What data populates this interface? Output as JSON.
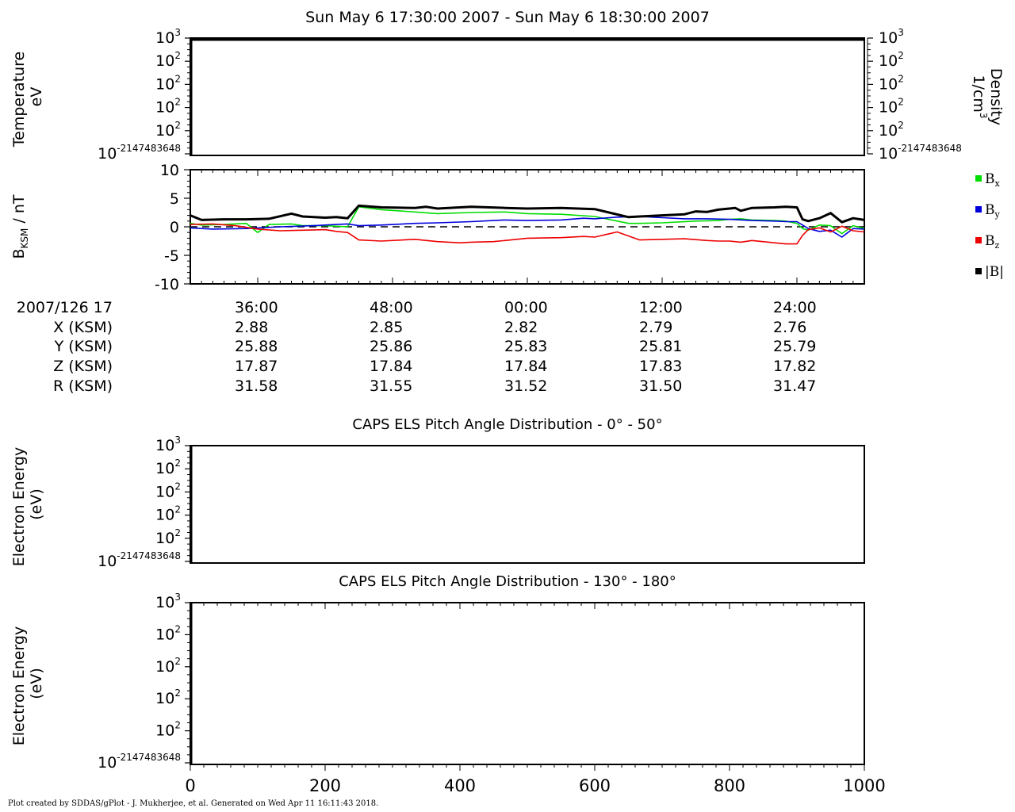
{
  "title": "Sun May 6 17:30:00 2007 - Sun May 6 18:30:00 2007",
  "footer": "Plot created by SDDAS/gPlot - J. Mukherjee, et al.  Generated on Wed Apr 11 16:11:43 2018.",
  "colors": {
    "bx": "#00dd00",
    "by": "#0000dd",
    "bz": "#ee0000",
    "bmag": "#000000"
  },
  "panels": {
    "temperature": {
      "ylabel_line1": "Temperature",
      "ylabel_line2": "eV",
      "right_label_line1": "Density",
      "right_label_line2": "1/cm",
      "right_label_sup": "3",
      "ticks": [
        {
          "base": "10",
          "exp": "3"
        },
        {
          "base": "10",
          "exp": "2"
        },
        {
          "base": "10",
          "exp": "2"
        },
        {
          "base": "10",
          "exp": "2"
        },
        {
          "base": "10",
          "exp": "2"
        },
        {
          "base": "10",
          "exp": "-2147483648"
        }
      ]
    },
    "magnetic": {
      "ylabel_main": "B",
      "ylabel_sub": "KSM",
      "ylabel_unit": " / nT",
      "ticks": [
        "10",
        "5",
        "0",
        "-5",
        "-10"
      ],
      "legend": [
        {
          "key": "bx",
          "base": "B",
          "sub": "x"
        },
        {
          "key": "by",
          "base": "B",
          "sub": "y"
        },
        {
          "key": "bz",
          "base": "B",
          "sub": "z"
        },
        {
          "key": "bmag",
          "base": "|B|",
          "sub": ""
        }
      ]
    },
    "pad1": {
      "title": "CAPS ELS Pitch Angle Distribution - 0° - 50°",
      "ylabel_line1": "Electron Energy",
      "ylabel_line2": "(eV)",
      "ticks": [
        {
          "base": "10",
          "exp": "3"
        },
        {
          "base": "10",
          "exp": "2"
        },
        {
          "base": "10",
          "exp": "2"
        },
        {
          "base": "10",
          "exp": "2"
        },
        {
          "base": "10",
          "exp": "2"
        },
        {
          "base": "10",
          "exp": "-2147483648"
        }
      ]
    },
    "pad2": {
      "title": "CAPS ELS Pitch Angle Distribution - 130° - 180°",
      "ylabel_line1": "Electron Energy",
      "ylabel_line2": "(eV)",
      "ticks": [
        {
          "base": "10",
          "exp": "3"
        },
        {
          "base": "10",
          "exp": "2"
        },
        {
          "base": "10",
          "exp": "2"
        },
        {
          "base": "10",
          "exp": "2"
        },
        {
          "base": "10",
          "exp": "2"
        },
        {
          "base": "10",
          "exp": "-2147483648"
        }
      ],
      "xticks": [
        "0",
        "200",
        "400",
        "600",
        "800",
        "1000"
      ]
    }
  },
  "ephemeris": {
    "row_labels": [
      "2007/126 17",
      "X (KSM)",
      "Y (KSM)",
      "Z (KSM)",
      "R (KSM)"
    ],
    "columns": [
      [
        "36:00",
        "2.88",
        "25.88",
        "17.87",
        "31.58"
      ],
      [
        "48:00",
        "2.85",
        "25.86",
        "17.84",
        "31.55"
      ],
      [
        "00:00",
        "2.82",
        "25.83",
        "17.84",
        "31.52"
      ],
      [
        "12:00",
        "2.79",
        "25.81",
        "17.83",
        "31.50"
      ],
      [
        "24:00",
        "2.76",
        "25.79",
        "17.82",
        "31.47"
      ]
    ]
  },
  "chart_data": [
    {
      "type": "line",
      "name": "magnetic-field",
      "x_unit": "minutes after 17:30",
      "xlim": [
        0,
        60
      ],
      "ylim": [
        -10,
        10
      ],
      "series": [
        {
          "key": "bmag",
          "name": "|B|",
          "x": [
            0,
            1,
            3,
            5,
            7,
            9,
            10,
            12,
            13,
            14,
            15,
            17,
            20,
            21,
            22,
            25,
            28,
            30,
            33,
            36,
            39,
            40,
            42,
            44,
            45,
            46,
            47,
            48,
            48.5,
            49,
            50,
            52,
            53,
            54,
            54.5,
            55,
            56,
            57,
            58,
            59,
            60
          ],
          "y": [
            2.0,
            1.2,
            1.3,
            1.3,
            1.4,
            2.3,
            1.8,
            1.6,
            1.7,
            1.5,
            3.7,
            3.4,
            3.3,
            3.5,
            3.2,
            3.5,
            3.3,
            3.2,
            3.3,
            3.1,
            1.7,
            1.8,
            2.0,
            2.2,
            2.7,
            2.6,
            3.0,
            3.2,
            3.3,
            2.8,
            3.3,
            3.4,
            3.5,
            3.4,
            1.3,
            1.0,
            1.5,
            2.4,
            0.8,
            1.5,
            1.2
          ]
        },
        {
          "key": "bx",
          "name": "Bx",
          "x": [
            0,
            1,
            3,
            5,
            6,
            7,
            9,
            10,
            12,
            13,
            14,
            15,
            17,
            20,
            22,
            25,
            28,
            30,
            33,
            36,
            39,
            40,
            42,
            45,
            47,
            48,
            49,
            50,
            52,
            53,
            54,
            54.5,
            55,
            56,
            57,
            58,
            59,
            60
          ],
          "y": [
            0.6,
            0.3,
            0.4,
            0.6,
            -1.0,
            0.4,
            0.5,
            0.2,
            0.2,
            0.1,
            0.0,
            3.5,
            3.0,
            2.6,
            2.3,
            2.5,
            2.6,
            2.3,
            2.2,
            1.8,
            0.6,
            0.6,
            0.7,
            1.0,
            1.1,
            1.3,
            1.4,
            1.2,
            1.1,
            1.0,
            0.6,
            -0.3,
            -0.6,
            0.3,
            0.2,
            -1.2,
            0.2,
            -0.3
          ]
        },
        {
          "key": "by",
          "name": "By",
          "x": [
            0,
            2,
            5,
            8,
            11,
            13,
            14,
            15,
            17,
            20,
            22,
            25,
            28,
            30,
            33,
            35,
            36,
            38,
            40,
            42,
            44,
            46,
            48,
            50,
            52,
            53,
            54,
            54.5,
            55,
            56,
            57,
            58,
            59,
            60
          ],
          "y": [
            -0.2,
            -0.4,
            -0.3,
            0.0,
            0.2,
            0.4,
            0.5,
            0.2,
            0.3,
            0.6,
            0.7,
            0.9,
            1.2,
            1.1,
            1.2,
            1.5,
            1.4,
            1.7,
            1.8,
            1.6,
            1.4,
            1.4,
            1.3,
            1.1,
            1.0,
            0.9,
            0.9,
            0.3,
            -0.3,
            -0.8,
            -0.6,
            -1.8,
            -0.3,
            -0.4
          ]
        },
        {
          "key": "bz",
          "name": "Bz",
          "x": [
            0,
            2,
            4,
            6,
            8,
            10,
            12,
            13,
            14,
            15,
            17,
            20,
            22,
            24,
            25,
            27,
            28,
            30,
            33,
            35,
            36,
            38,
            40,
            42,
            44,
            46,
            47,
            48,
            49,
            50,
            52,
            53,
            54,
            54.5,
            55,
            56,
            57,
            58,
            59,
            60
          ],
          "y": [
            0.4,
            0.5,
            0.2,
            -0.4,
            -0.7,
            -0.6,
            -0.5,
            -0.8,
            -1.0,
            -2.3,
            -2.5,
            -2.2,
            -2.6,
            -2.8,
            -2.7,
            -2.6,
            -2.4,
            -2.0,
            -1.9,
            -1.7,
            -1.8,
            -0.9,
            -2.3,
            -2.2,
            -2.1,
            -2.4,
            -2.5,
            -2.5,
            -2.7,
            -2.4,
            -2.8,
            -3.0,
            -3.0,
            -1.5,
            -0.5,
            -0.2,
            -0.9,
            0.1,
            -0.7,
            -0.9
          ]
        }
      ]
    }
  ]
}
